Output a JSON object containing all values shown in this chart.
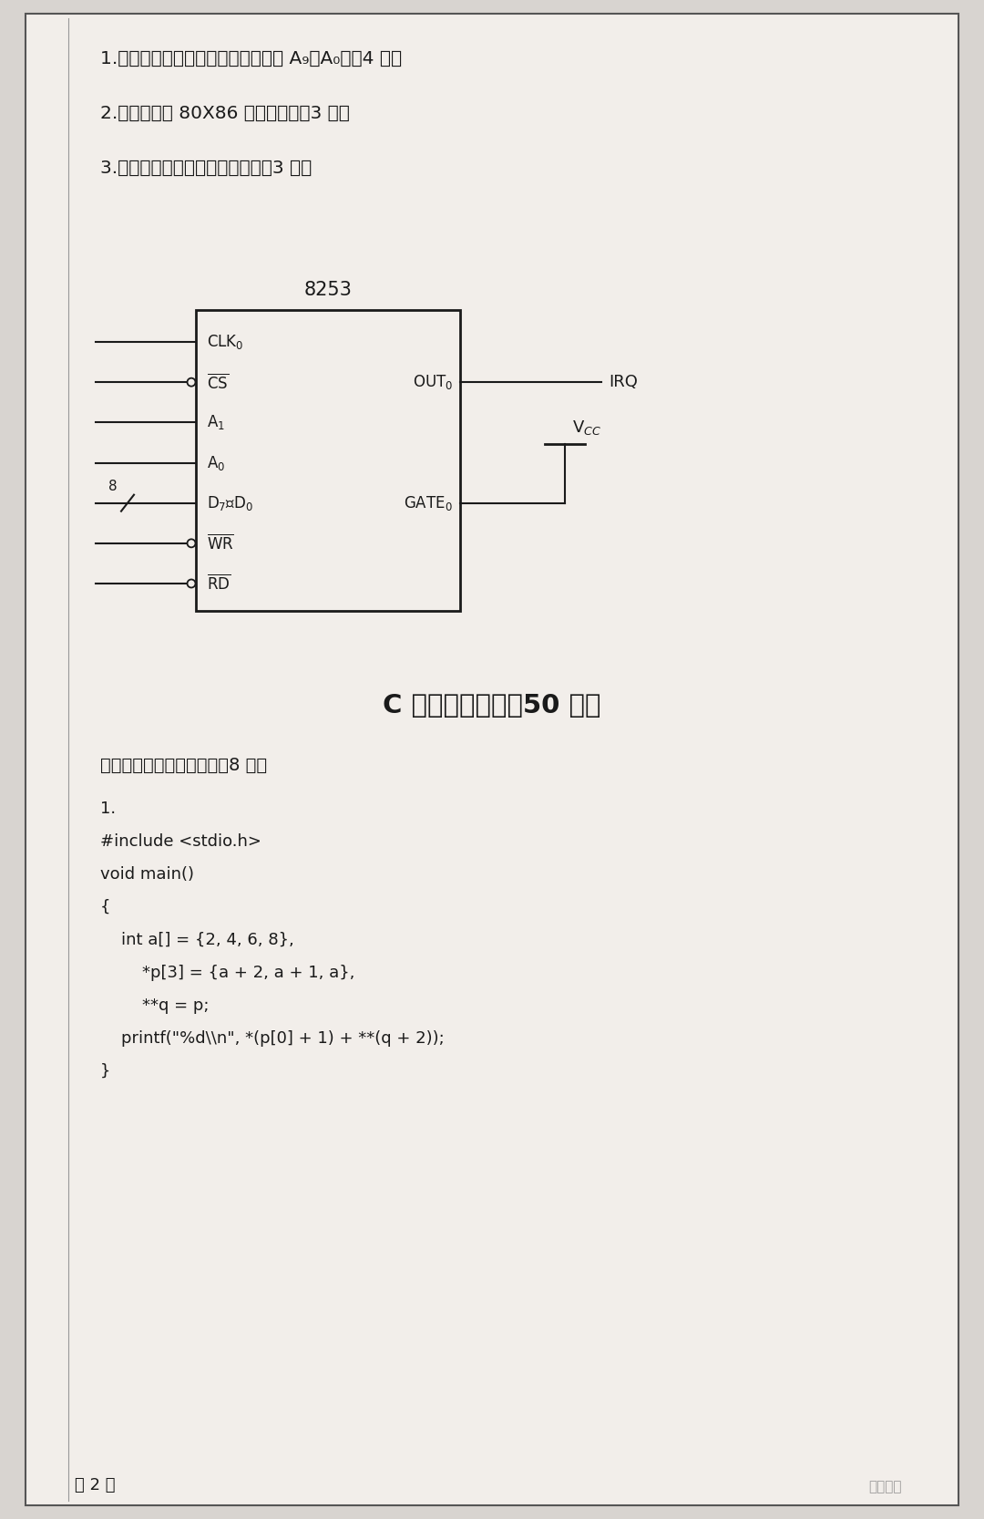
{
  "bg_color": "#d8d4d0",
  "page_bg": "#f2eeea",
  "border_color": "#444444",
  "text_color": "#1a1a1a",
  "questions_top": [
    "1.　试画出地址译码图；（地址线为 A₉～A₀）（4 分）",
    "2.　试画出与 80X86 的连接图；（3 分）",
    "3.　计算出计数器的计数初値。（3 分）"
  ],
  "chip_label": "8253",
  "pin_left": [
    "CLK$_0$",
    "$\\overline{\\mathrm{CS}}$",
    "A$_1$",
    "A$_0$",
    "D$_7$～D$_0$",
    "$\\overline{\\mathrm{WR}}$",
    "$\\overline{\\mathrm{RD}}$"
  ],
  "pin_right_out": "OUT$_0$",
  "pin_right_gate": "GATE$_0$",
  "irq_label": "IRQ",
  "vcc_label": "V$_{CC}$",
  "section_c_title": "C 语言程序设计（50 分）",
  "subsection": "一、读程序，写执行结果（8 分）",
  "code_line1": "1.",
  "code_line2": "#include <stdio.h>",
  "code_line3": "void main()",
  "code_line4": "{",
  "code_line5": "    int a[] = {2, 4, 6, 8},",
  "code_line6": "        *p[3] = {a + 2, a + 1, a},",
  "code_line7": "        **q = p;",
  "code_line8": "    printf(\"%d\\\\n\", *(p[0] + 1) + **(q + 2));",
  "code_line9": "}",
  "page_num": "第 2 页",
  "watermark": "考研快讯"
}
